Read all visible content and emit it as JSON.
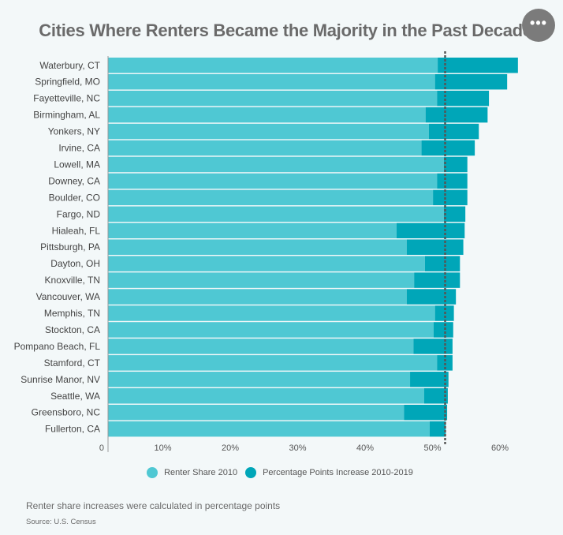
{
  "header": {
    "title": "Cities Where Renters Became the Majority in the Past Decade",
    "menu_icon": "ellipsis-icon",
    "menu_label": "•••"
  },
  "colors": {
    "renter_share_2010": "#4fc8d3",
    "increase": "#00a6b8",
    "reference_line": "#555555"
  },
  "chart_data": {
    "type": "bar",
    "orientation": "horizontal",
    "stacked": true,
    "title": "Cities Where Renters Became the Majority in the Past Decade",
    "xlabel": "",
    "ylabel": "",
    "xlim": [
      0,
      62
    ],
    "x_ticks": [
      0,
      10,
      20,
      30,
      40,
      50,
      60
    ],
    "x_tick_labels": [
      "0",
      "10%",
      "20%",
      "30%",
      "40%",
      "50%",
      "60%"
    ],
    "reference_line": {
      "value": 50,
      "style": "dashed"
    },
    "categories": [
      "Waterbury, CT",
      "Springfield, MO",
      "Fayetteville, NC",
      "Birmingham, AL",
      "Yonkers, NY",
      "Irvine, CA",
      "Lowell, MA",
      "Downey, CA",
      "Boulder, CO",
      "Fargo, ND",
      "Hialeah, FL",
      "Pittsburgh, PA",
      "Dayton, OH",
      "Knoxville, TN",
      "Vancouver, WA",
      "Memphis, TN",
      "Stockton, CA",
      "Pompano Beach, FL",
      "Stamford, CT",
      "Sunrise Manor, NV",
      "Seattle, WA",
      "Greensboro, NC",
      "Fullerton, CA"
    ],
    "series": [
      {
        "name": "Renter Share 2010",
        "values": [
          48.9,
          48.5,
          48.8,
          47.1,
          47.6,
          46.5,
          49.8,
          48.8,
          48.2,
          49.8,
          42.8,
          44.3,
          47.0,
          45.4,
          44.3,
          48.5,
          48.3,
          45.3,
          48.8,
          44.8,
          46.9,
          43.9,
          47.7
        ]
      },
      {
        "name": "Percentage Points Increase 2010-2019",
        "values": [
          11.9,
          10.7,
          7.7,
          9.2,
          7.4,
          7.9,
          3.5,
          4.5,
          5.1,
          3.2,
          10.1,
          8.4,
          5.2,
          6.8,
          7.3,
          2.8,
          2.9,
          5.8,
          2.3,
          5.7,
          3.5,
          6.4,
          2.4
        ]
      }
    ],
    "legend": {
      "position": "bottom",
      "entries": [
        "Renter Share 2010",
        "Percentage Points Increase 2010-2019"
      ]
    }
  },
  "footer": {
    "note": "Renter share increases were calculated in percentage points",
    "source": "Source: U.S. Census"
  }
}
